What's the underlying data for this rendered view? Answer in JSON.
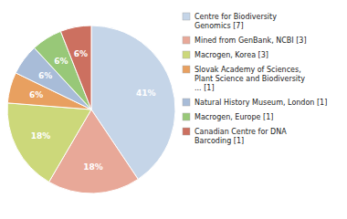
{
  "chart_data": {
    "type": "pie",
    "categories": [
      "Centre for Biodiversity\nGenomics [7]",
      "Mined from GenBank, NCBI [3]",
      "Macrogen, Korea [3]",
      "Slovak Academy of Sciences,\nPlant Science and Biodiversity\n... [1]",
      "Natural History Museum, London [1]",
      "Macrogen, Europe [1]",
      "Canadian Centre for DNA\nBarcoding [1]"
    ],
    "values": [
      41,
      18,
      18,
      6,
      6,
      6,
      6
    ],
    "value_labels": [
      "41%",
      "18%",
      "18%",
      "6%",
      "6%",
      "6%",
      "6%"
    ],
    "colors": [
      "#c5d5e8",
      "#e8a898",
      "#ccd87a",
      "#e8a060",
      "#a8bcd8",
      "#98c878",
      "#cc7060"
    ],
    "data_labels": true,
    "legend": "right"
  }
}
